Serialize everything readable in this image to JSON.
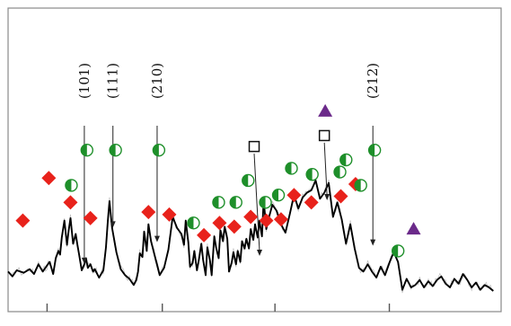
{
  "chart_data": {
    "type": "line",
    "title": "",
    "xlabel": "",
    "ylabel": "",
    "grid": false,
    "legend": "none",
    "line_color": "#000000",
    "noise_color": "#9a9a9a",
    "series": [
      {
        "x": [
          0,
          5,
          10,
          18,
          25,
          30,
          35,
          40,
          45,
          48,
          50,
          52,
          55,
          58,
          60,
          62,
          65,
          68,
          70,
          72,
          75,
          78,
          80,
          82,
          85,
          88,
          90,
          92,
          95,
          98,
          100,
          105,
          110,
          113,
          115,
          117,
          120,
          125,
          130,
          135,
          140,
          145,
          148,
          150,
          152,
          155,
          157,
          160,
          162,
          165,
          170,
          175,
          180,
          185,
          190,
          195,
          200,
          203,
          205,
          208,
          210,
          213,
          215,
          218,
          220,
          223,
          225,
          228,
          230,
          233,
          235,
          238,
          240,
          243,
          245,
          248,
          250,
          253,
          255,
          258,
          260,
          263,
          265,
          268,
          270,
          273,
          275,
          278,
          280,
          283,
          285,
          288,
          290,
          293,
          295,
          298,
          300,
          305,
          310,
          315,
          320,
          325,
          330,
          335,
          340,
          345,
          350,
          355,
          360,
          365,
          370,
          375,
          380,
          385,
          390,
          395,
          400,
          405,
          410,
          415,
          420,
          425,
          430,
          435,
          440,
          445,
          450,
          455,
          460,
          465,
          470,
          475,
          480,
          485,
          490,
          495,
          500,
          505,
          510,
          515,
          520,
          525,
          530,
          535,
          540,
          545,
          550,
          555,
          560
        ],
        "y": [
          33,
          29,
          34,
          32,
          35,
          31,
          39,
          33,
          38,
          41,
          36,
          31,
          44,
          50,
          47,
          61,
          75,
          55,
          67,
          77,
          56,
          64,
          55,
          47,
          34,
          39,
          44,
          36,
          39,
          33,
          35,
          28,
          34,
          53,
          74,
          91,
          69,
          49,
          35,
          30,
          27,
          22,
          26,
          33,
          48,
          45,
          66,
          50,
          72,
          58,
          44,
          30,
          36,
          51,
          78,
          69,
          64,
          55,
          75,
          57,
          37,
          40,
          50,
          34,
          42,
          56,
          43,
          30,
          53,
          42,
          30,
          62,
          53,
          44,
          67,
          58,
          70,
          60,
          33,
          40,
          49,
          39,
          50,
          41,
          58,
          52,
          60,
          52,
          68,
          59,
          72,
          61,
          75,
          62,
          92,
          68,
          75,
          88,
          83,
          72,
          65,
          80,
          96,
          85,
          94,
          98,
          100,
          108,
          93,
          98,
          106,
          78,
          90,
          76,
          56,
          72,
          52,
          36,
          33,
          39,
          33,
          28,
          37,
          30,
          40,
          49,
          41,
          18,
          27,
          20,
          22,
          26,
          20,
          25,
          21,
          26,
          29,
          23,
          20,
          27,
          23,
          31,
          26,
          20,
          24,
          18,
          22,
          20,
          17
        ]
      }
    ],
    "xlim": [
      0,
      569
    ],
    "ylim": [
      0,
      250
    ],
    "x_tick_values": [
      45,
      178,
      308,
      440
    ],
    "peak_labels": [
      {
        "label": "(101)",
        "x": 88,
        "y": 40
      },
      {
        "label": "(111)",
        "x": 121,
        "y": 70
      },
      {
        "label": "(210)",
        "x": 172,
        "y": 58
      },
      {
        "label": "(212)",
        "x": 421,
        "y": 55
      }
    ],
    "marker_series": [
      {
        "symbol": "diamond",
        "color": "#e8221b",
        "points": [
          [
            17,
            75
          ],
          [
            47,
            110
          ],
          [
            72,
            90
          ],
          [
            95,
            77
          ],
          [
            162,
            82
          ],
          [
            186,
            80
          ],
          [
            226,
            63
          ],
          [
            244,
            73
          ],
          [
            261,
            70
          ],
          [
            280,
            78
          ],
          [
            298,
            75
          ],
          [
            315,
            76
          ],
          [
            330,
            96
          ],
          [
            350,
            90
          ],
          [
            384,
            95
          ],
          [
            401,
            105
          ]
        ]
      },
      {
        "symbol": "half-circle",
        "color": "#1e8f2a",
        "points": [
          [
            73,
            104
          ],
          [
            91,
            133
          ],
          [
            124,
            133
          ],
          [
            174,
            133
          ],
          [
            214,
            73
          ],
          [
            243,
            90
          ],
          [
            263,
            90
          ],
          [
            277,
            108
          ],
          [
            297,
            90
          ],
          [
            312,
            96
          ],
          [
            327,
            118
          ],
          [
            351,
            113
          ],
          [
            390,
            125
          ],
          [
            383,
            115
          ],
          [
            407,
            104
          ],
          [
            423,
            133
          ],
          [
            450,
            50
          ]
        ]
      },
      {
        "symbol": "open-square",
        "color": "#111111",
        "points": [
          [
            284,
            136
          ],
          [
            365,
            145
          ]
        ]
      },
      {
        "symbol": "triangle",
        "color": "#6b2a8a",
        "points": [
          [
            366,
            165
          ],
          [
            468,
            68
          ]
        ]
      }
    ]
  }
}
